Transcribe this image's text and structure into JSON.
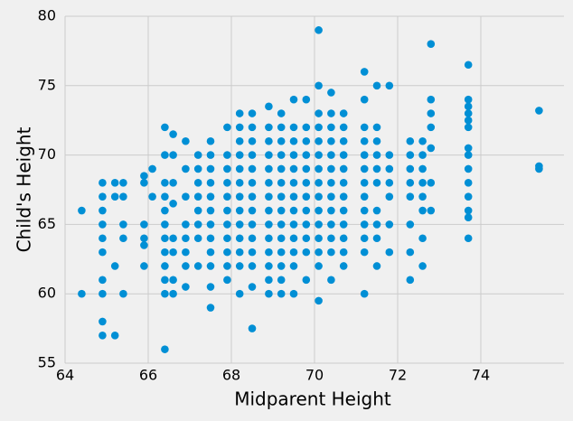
{
  "chart_data": {
    "type": "scatter",
    "xlabel": "Midparent Height",
    "ylabel": "Child's Height",
    "color": "#008fd5",
    "grid": true,
    "xlim": [
      64,
      76
    ],
    "ylim": [
      55,
      80
    ],
    "xticks": [
      64,
      66,
      68,
      70,
      72,
      74
    ],
    "yticks": [
      55,
      60,
      65,
      70,
      75,
      80
    ],
    "x": [
      64.4,
      64.4,
      64.9,
      64.9,
      64.9,
      64.9,
      64.9,
      64.9,
      64.9,
      64.9,
      64.9,
      64.9,
      65.2,
      65.2,
      65.2,
      65.2,
      65.4,
      65.4,
      65.4,
      65.4,
      65.4,
      65.9,
      65.9,
      65.9,
      65.9,
      65.9,
      65.9,
      66.1,
      66.1,
      66.4,
      66.4,
      66.4,
      66.4,
      66.4,
      66.4,
      66.4,
      66.4,
      66.4,
      66.4,
      66.4,
      66.4,
      66.6,
      66.6,
      66.6,
      66.6,
      66.6,
      66.6,
      66.6,
      66.6,
      66.9,
      66.9,
      66.9,
      66.9,
      66.9,
      66.9,
      66.9,
      66.9,
      67.2,
      67.2,
      67.2,
      67.2,
      67.2,
      67.2,
      67.2,
      67.2,
      67.5,
      67.5,
      67.5,
      67.5,
      67.5,
      67.5,
      67.5,
      67.5,
      67.5,
      67.5,
      67.5,
      67.5,
      67.9,
      67.9,
      67.9,
      67.9,
      67.9,
      67.9,
      67.9,
      67.9,
      67.9,
      67.9,
      67.9,
      68.2,
      68.2,
      68.2,
      68.2,
      68.2,
      68.2,
      68.2,
      68.2,
      68.2,
      68.2,
      68.2,
      68.2,
      68.2,
      68.5,
      68.5,
      68.5,
      68.5,
      68.5,
      68.5,
      68.5,
      68.5,
      68.5,
      68.5,
      68.5,
      68.5,
      68.5,
      68.5,
      68.9,
      68.9,
      68.9,
      68.9,
      68.9,
      68.9,
      68.9,
      68.9,
      68.9,
      68.9,
      68.9,
      68.9,
      68.9,
      68.9,
      69.2,
      69.2,
      69.2,
      69.2,
      69.2,
      69.2,
      69.2,
      69.2,
      69.2,
      69.2,
      69.2,
      69.2,
      69.2,
      69.2,
      69.5,
      69.5,
      69.5,
      69.5,
      69.5,
      69.5,
      69.5,
      69.5,
      69.5,
      69.5,
      69.5,
      69.5,
      69.5,
      69.8,
      69.8,
      69.8,
      69.8,
      69.8,
      69.8,
      69.8,
      69.8,
      69.8,
      69.8,
      69.8,
      69.8,
      70.1,
      70.1,
      70.1,
      70.1,
      70.1,
      70.1,
      70.1,
      70.1,
      70.1,
      70.1,
      70.1,
      70.1,
      70.1,
      70.1,
      70.1,
      70.4,
      70.4,
      70.4,
      70.4,
      70.4,
      70.4,
      70.4,
      70.4,
      70.4,
      70.4,
      70.4,
      70.4,
      70.4,
      70.7,
      70.7,
      70.7,
      70.7,
      70.7,
      70.7,
      70.7,
      70.7,
      70.7,
      70.7,
      70.7,
      70.7,
      71.2,
      71.2,
      71.2,
      71.2,
      71.2,
      71.2,
      71.2,
      71.2,
      71.2,
      71.2,
      71.2,
      71.2,
      71.2,
      71.5,
      71.5,
      71.5,
      71.5,
      71.5,
      71.5,
      71.5,
      71.5,
      71.5,
      71.5,
      71.8,
      71.8,
      71.8,
      71.8,
      71.8,
      71.8,
      71.8,
      72.3,
      72.3,
      72.3,
      72.3,
      72.3,
      72.3,
      72.3,
      72.3,
      72.6,
      72.6,
      72.6,
      72.6,
      72.6,
      72.6,
      72.6,
      72.6,
      72.8,
      72.8,
      72.8,
      72.8,
      72.8,
      72.8,
      72.8,
      73.7,
      73.7,
      73.7,
      73.7,
      73.7,
      73.7,
      73.7,
      73.7,
      73.7,
      73.7,
      73.7,
      73.7,
      73.7,
      73.7,
      75.4,
      75.4,
      75.4
    ],
    "values": [
      60,
      66,
      57,
      58,
      60,
      61,
      63,
      64,
      65,
      66,
      67,
      68,
      57,
      62,
      67,
      68,
      60,
      64,
      65,
      67,
      68,
      62,
      63.5,
      64,
      65,
      68,
      68.5,
      67,
      69,
      56,
      60,
      61,
      62,
      63,
      64,
      65,
      66,
      67,
      68,
      70,
      72,
      60,
      61,
      63,
      64,
      66.5,
      68,
      70,
      71.5,
      60.5,
      62,
      63,
      64,
      65,
      67,
      69,
      71,
      62,
      64,
      65,
      66,
      67,
      68,
      69,
      70,
      59,
      60.5,
      62,
      63,
      64,
      65,
      66,
      67,
      68,
      69,
      70,
      71,
      61,
      62,
      63,
      64,
      65,
      66,
      67,
      68,
      69,
      70,
      72,
      60,
      62,
      63,
      64,
      65,
      66,
      67,
      68,
      69,
      70,
      71,
      72,
      73,
      57.5,
      60.5,
      62,
      63,
      64,
      65,
      66,
      67,
      68,
      69,
      70,
      71,
      72,
      73,
      60,
      61,
      62,
      63,
      64,
      65,
      66,
      67,
      68,
      69,
      70,
      71,
      72,
      73.5,
      60,
      61,
      62,
      63,
      64,
      65,
      66,
      67,
      68,
      69,
      70,
      71,
      72,
      73,
      60,
      62,
      63,
      64,
      65,
      66,
      67,
      68,
      69,
      70,
      71,
      72,
      74,
      61,
      63,
      64,
      65,
      66,
      67,
      68,
      69,
      70,
      71,
      72,
      74,
      59.5,
      62,
      63,
      64,
      65,
      66,
      67,
      68,
      69,
      70,
      71,
      72,
      73,
      75,
      79,
      61,
      63,
      64,
      65,
      66,
      67,
      68,
      69,
      70,
      71,
      72,
      73,
      74.5,
      62,
      63,
      64,
      65,
      66,
      67,
      68,
      69,
      70,
      71,
      72,
      73,
      60,
      63,
      64,
      65,
      66,
      67,
      68,
      69,
      70,
      71,
      72,
      74,
      76,
      62,
      64,
      65,
      66,
      68,
      69,
      70,
      71,
      72,
      75,
      63,
      65,
      67,
      68,
      69,
      70,
      75,
      61,
      63,
      65,
      67,
      68,
      69,
      70,
      71,
      62,
      64,
      66,
      67,
      68,
      69,
      70,
      71,
      66,
      68,
      70.5,
      72,
      73,
      74,
      78,
      64,
      65.5,
      66,
      67,
      68,
      69,
      70,
      70.5,
      72,
      72.5,
      73,
      73.5,
      74,
      76.5,
      69,
      69.2,
      73.2
    ]
  }
}
